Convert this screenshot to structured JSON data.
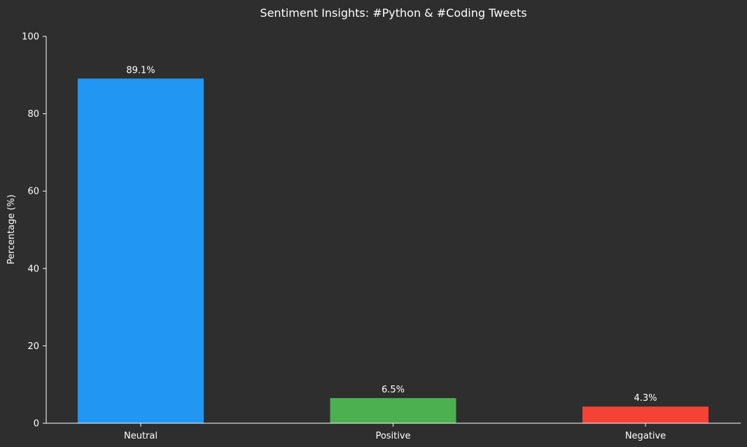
{
  "chart_data": {
    "type": "bar",
    "title": "Sentiment Insights: #Python & #Coding Tweets",
    "xlabel": "",
    "ylabel": "Percentage (%)",
    "categories": [
      "Neutral",
      "Positive",
      "Negative"
    ],
    "values": [
      89.1,
      6.5,
      4.3
    ],
    "data_labels": [
      "89.1%",
      "6.5%",
      "4.3%"
    ],
    "colors": [
      "#2196f3",
      "#4caf50",
      "#f44336"
    ],
    "ylim": [
      0,
      100
    ],
    "yticks": [
      0,
      20,
      40,
      60,
      80,
      100
    ],
    "grid": false,
    "legend": "none"
  },
  "theme": {
    "background": "#2e2e2e",
    "text_color": "#ffffff",
    "axis_color": "#ffffff"
  }
}
